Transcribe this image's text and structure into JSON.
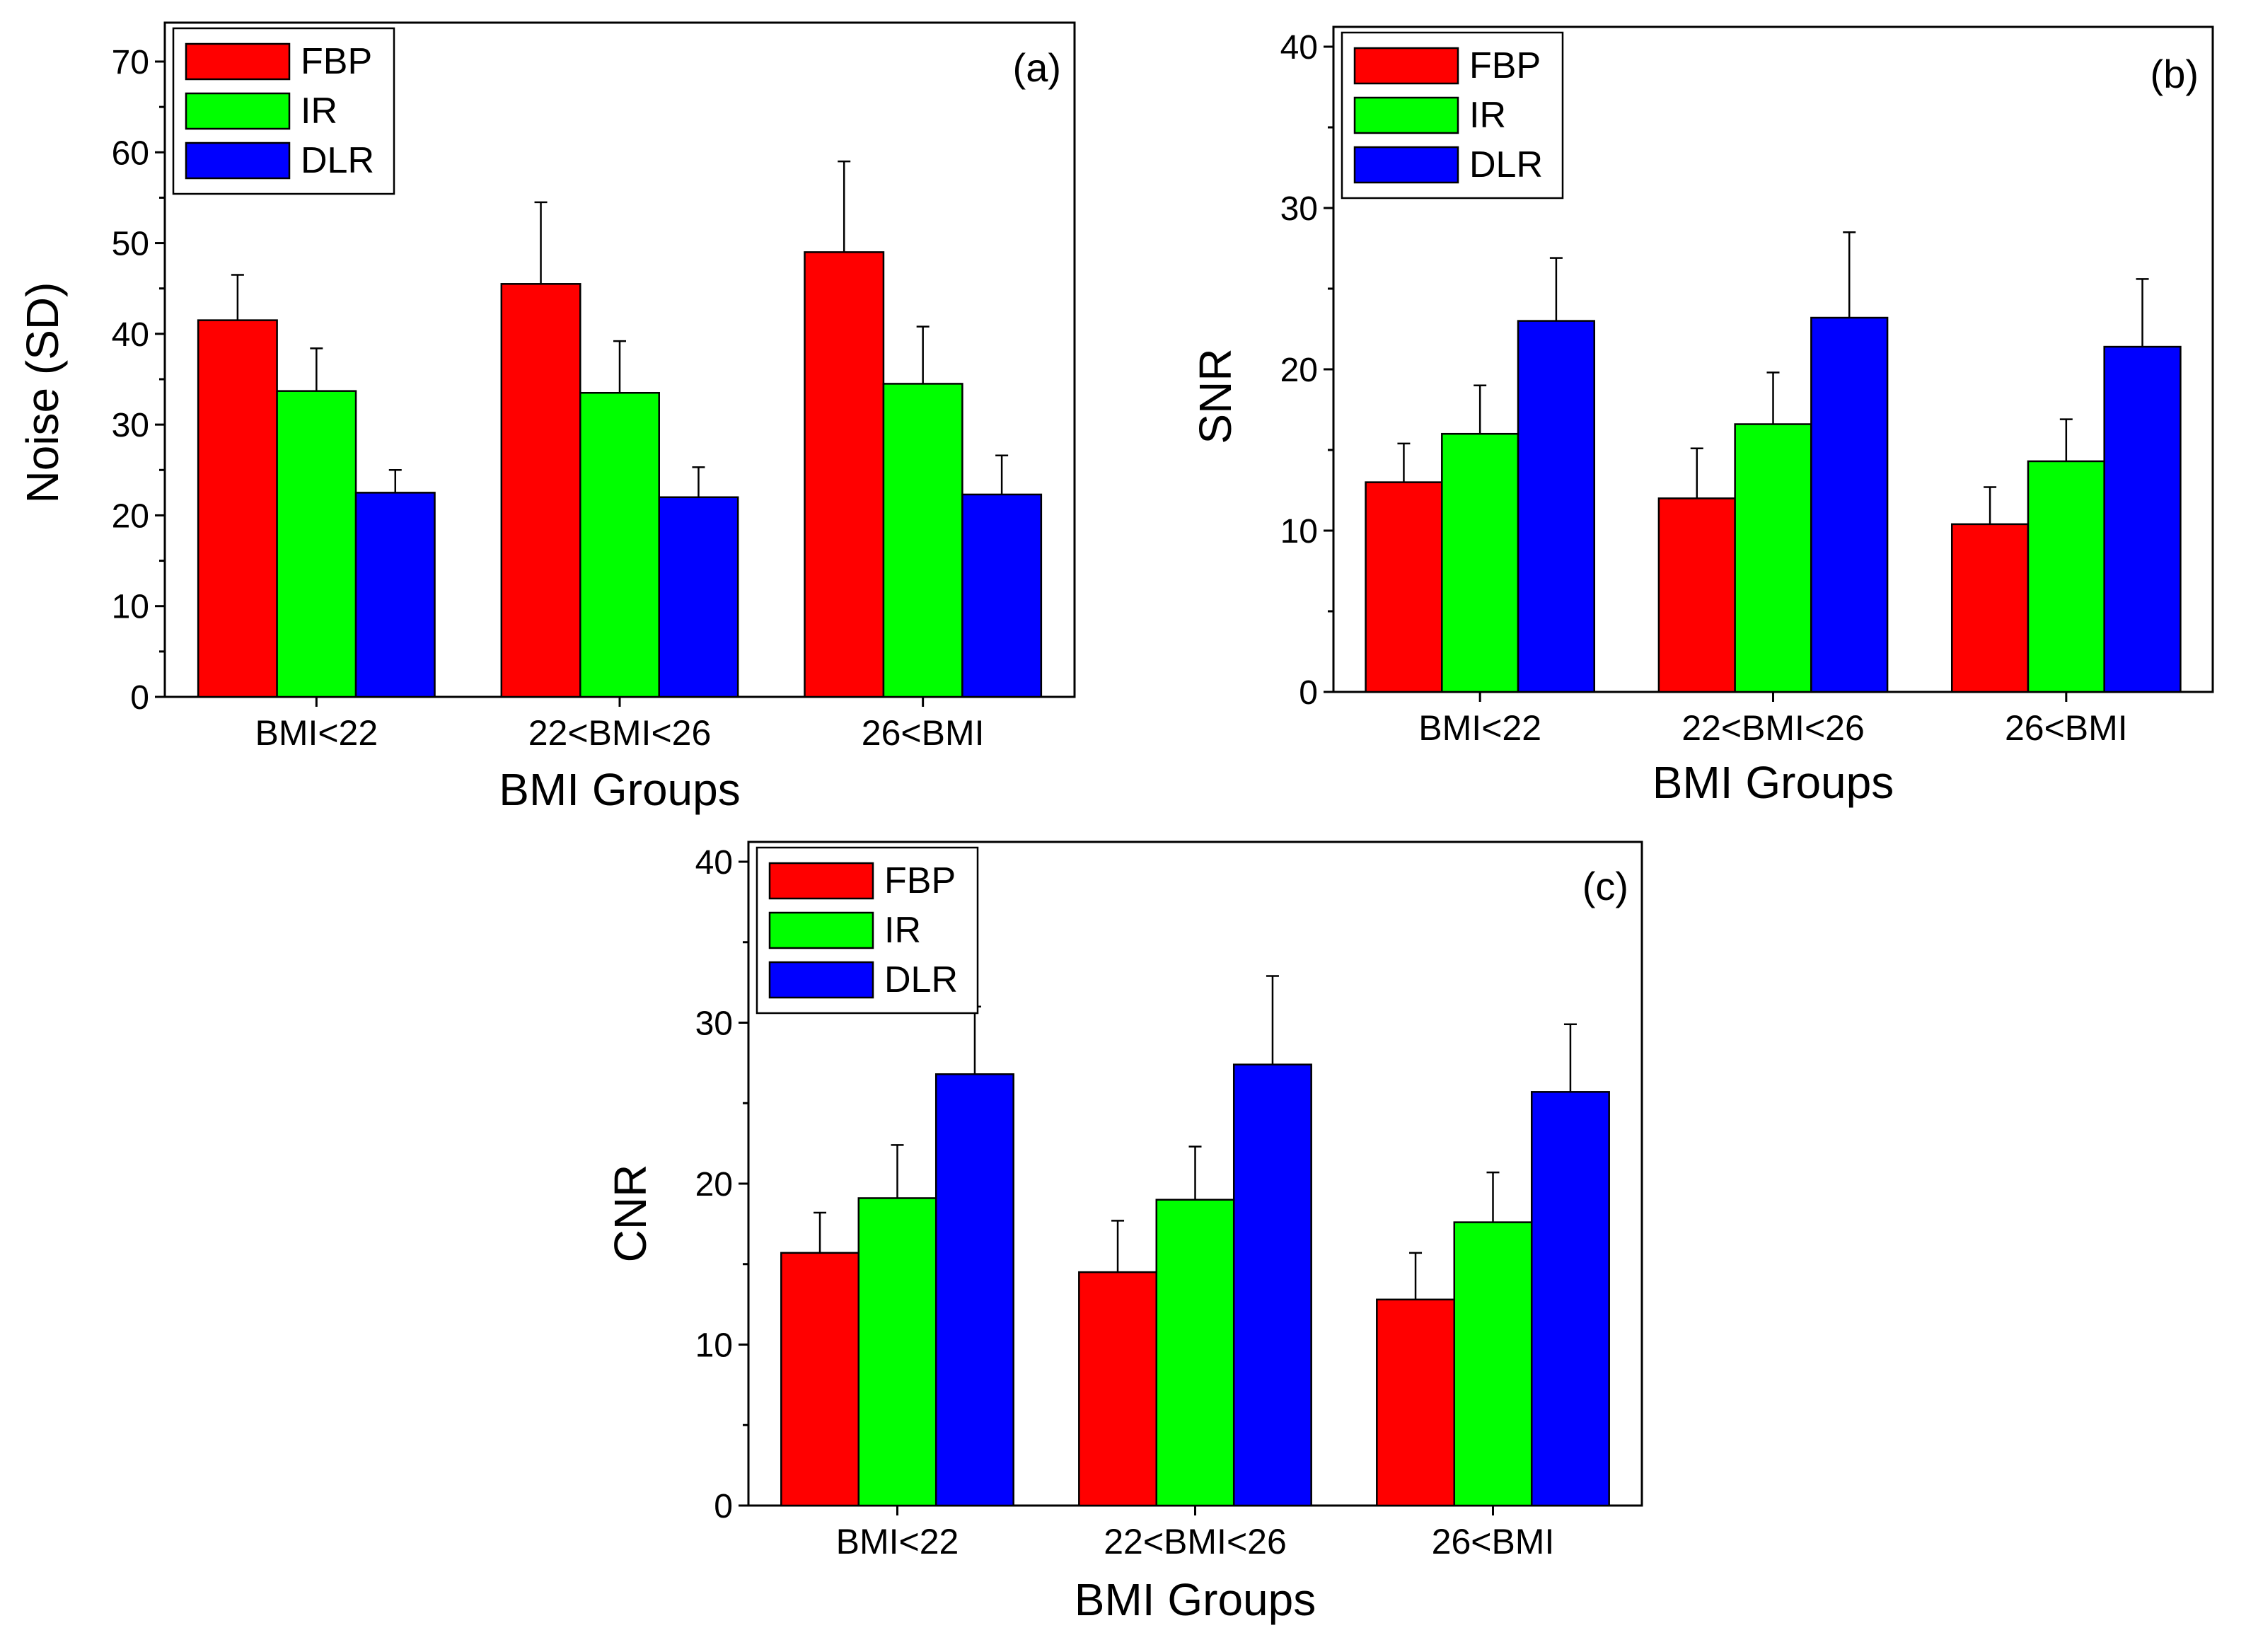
{
  "chart_data": [
    {
      "type": "bar",
      "panel": "(a)",
      "categories": [
        "BMI<22",
        "22<BMI<26",
        "26<BMI"
      ],
      "series": [
        {
          "name": "FBP",
          "values": [
            41.5,
            45.5,
            49.0
          ],
          "errors": [
            5.0,
            9.0,
            10.0
          ]
        },
        {
          "name": "IR",
          "values": [
            33.7,
            33.5,
            34.5
          ],
          "errors": [
            4.7,
            5.7,
            6.3
          ]
        },
        {
          "name": "DLR",
          "values": [
            22.5,
            22.0,
            22.3
          ],
          "errors": [
            2.5,
            3.3,
            4.3
          ]
        }
      ],
      "xlabel": "BMI Groups",
      "ylabel": "Noise (SD)",
      "ylim": [
        0,
        70
      ],
      "yticks": [
        0,
        10,
        20,
        30,
        40,
        50,
        60,
        70
      ],
      "legend_position": "top-left",
      "grid": false
    },
    {
      "type": "bar",
      "panel": "(b)",
      "categories": [
        "BMI<22",
        "22<BMI<26",
        "26<BMI"
      ],
      "series": [
        {
          "name": "FBP",
          "values": [
            13.0,
            12.0,
            10.4
          ],
          "errors": [
            2.4,
            3.1,
            2.3
          ]
        },
        {
          "name": "IR",
          "values": [
            16.0,
            16.6,
            14.3
          ],
          "errors": [
            3.0,
            3.2,
            2.6
          ]
        },
        {
          "name": "DLR",
          "values": [
            23.0,
            23.2,
            21.4
          ],
          "errors": [
            3.9,
            5.3,
            4.2
          ]
        }
      ],
      "xlabel": "BMI Groups",
      "ylabel": "SNR",
      "ylim": [
        0,
        40
      ],
      "yticks": [
        0,
        10,
        20,
        30,
        40
      ],
      "legend_position": "top-left",
      "grid": false
    },
    {
      "type": "bar",
      "panel": "(c)",
      "categories": [
        "BMI<22",
        "22<BMI<26",
        "26<BMI"
      ],
      "series": [
        {
          "name": "FBP",
          "values": [
            15.7,
            14.5,
            12.8
          ],
          "errors": [
            2.5,
            3.2,
            2.9
          ]
        },
        {
          "name": "IR",
          "values": [
            19.1,
            19.0,
            17.6
          ],
          "errors": [
            3.3,
            3.3,
            3.1
          ]
        },
        {
          "name": "DLR",
          "values": [
            26.8,
            27.4,
            25.7
          ],
          "errors": [
            4.2,
            5.5,
            4.2
          ]
        }
      ],
      "xlabel": "BMI Groups",
      "ylabel": "CNR",
      "ylim": [
        0,
        40
      ],
      "yticks": [
        0,
        10,
        20,
        30,
        40
      ],
      "legend_position": "top-left",
      "grid": false
    }
  ],
  "colors": {
    "FBP": "#ff0000",
    "IR": "#00ff00",
    "DLR": "#0000ff"
  }
}
